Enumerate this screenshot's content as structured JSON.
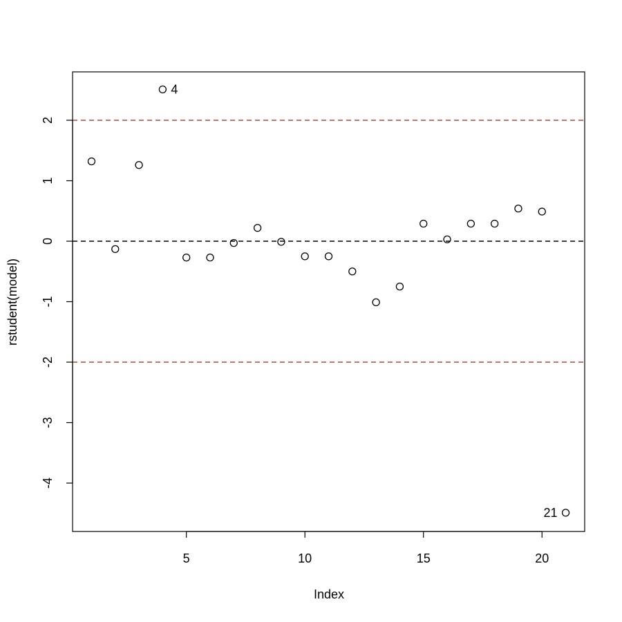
{
  "chart_data": {
    "type": "scatter",
    "title": "",
    "xlabel": "Index",
    "ylabel": "rstudent(model)",
    "xlim": [
      0.2,
      21.8
    ],
    "ylim": [
      -4.8,
      2.8
    ],
    "x_ticks": [
      5,
      10,
      15,
      20
    ],
    "y_ticks": [
      -4,
      -3,
      -2,
      -1,
      0,
      1,
      2
    ],
    "grid": false,
    "marker": "open-circle",
    "points": [
      {
        "x": 1,
        "y": 1.32
      },
      {
        "x": 2,
        "y": -0.13
      },
      {
        "x": 3,
        "y": 1.26
      },
      {
        "x": 4,
        "y": 2.51,
        "label": "4"
      },
      {
        "x": 5,
        "y": -0.27
      },
      {
        "x": 6,
        "y": -0.27
      },
      {
        "x": 7,
        "y": -0.03
      },
      {
        "x": 8,
        "y": 0.22
      },
      {
        "x": 9,
        "y": -0.01
      },
      {
        "x": 10,
        "y": -0.25
      },
      {
        "x": 11,
        "y": -0.25
      },
      {
        "x": 12,
        "y": -0.5
      },
      {
        "x": 13,
        "y": -1.01
      },
      {
        "x": 14,
        "y": -0.75
      },
      {
        "x": 15,
        "y": 0.29
      },
      {
        "x": 16,
        "y": 0.03
      },
      {
        "x": 17,
        "y": 0.29
      },
      {
        "x": 18,
        "y": 0.29
      },
      {
        "x": 19,
        "y": 0.54
      },
      {
        "x": 20,
        "y": 0.49
      },
      {
        "x": 21,
        "y": -4.49,
        "label": "21"
      }
    ],
    "reference_lines": [
      {
        "y": 2,
        "color": "#b5473a",
        "style": "dashed"
      },
      {
        "y": 0,
        "color": "#000000",
        "style": "dashed"
      },
      {
        "y": -2,
        "color": "#b5473a",
        "style": "dashed"
      }
    ]
  }
}
